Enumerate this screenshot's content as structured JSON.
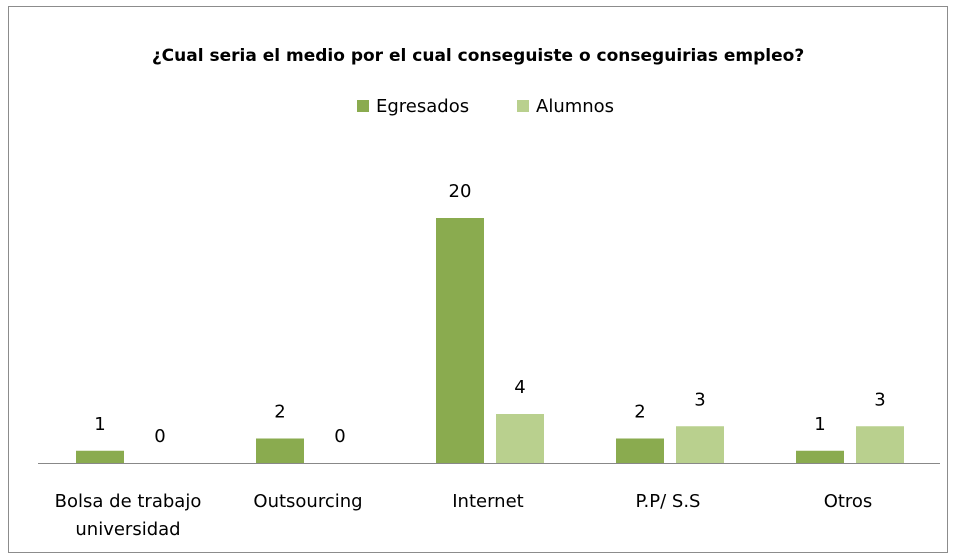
{
  "chart_data": {
    "type": "bar",
    "title": "¿Cual seria el medio por el cual conseguiste o conseguirias  empleo?",
    "categories": [
      "Bolsa de trabajo universidad",
      "Outsourcing",
      "Internet",
      "P.P/ S.S",
      "Otros"
    ],
    "series": [
      {
        "name": "Egresados",
        "color": "#8aab4f",
        "values": [
          1,
          2,
          20,
          2,
          1
        ]
      },
      {
        "name": "Alumnos",
        "color": "#b9d08e",
        "values": [
          0,
          0,
          4,
          3,
          3
        ]
      }
    ],
    "legend": "top"
  }
}
